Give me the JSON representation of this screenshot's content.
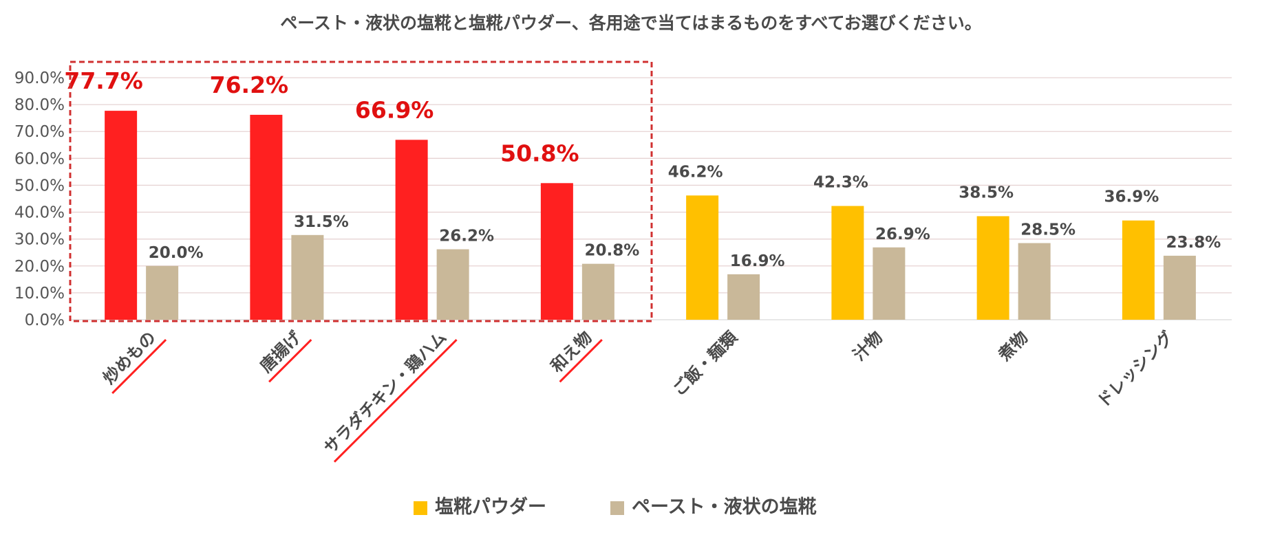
{
  "chart_data": {
    "type": "bar",
    "title": "ペースト・液状の塩糀と塩糀パウダー、各用途で当てはまるものをすべてお選びください。",
    "categories": [
      "炒めもの",
      "唐揚げ",
      "サラダチキン・鶏ハム",
      "和え物",
      "ご飯・麺類",
      "汁物",
      "煮物",
      "ドレッシング"
    ],
    "series": [
      {
        "name": "塩糀パウダー",
        "values": [
          77.7,
          76.2,
          66.9,
          50.8,
          46.2,
          42.3,
          38.5,
          36.9
        ],
        "labels": [
          "77.7%",
          "76.2%",
          "66.9%",
          "50.8%",
          "46.2%",
          "42.3%",
          "38.5%",
          "36.9%"
        ]
      },
      {
        "name": "ペースト・液状の塩糀",
        "values": [
          20.0,
          31.5,
          26.2,
          20.8,
          16.9,
          26.9,
          28.5,
          23.8
        ],
        "labels": [
          "20.0%",
          "31.5%",
          "26.2%",
          "20.8%",
          "16.9%",
          "26.9%",
          "28.5%",
          "23.8%"
        ]
      }
    ],
    "highlighted_categories": 4,
    "yticks": [
      "0.0%",
      "10.0%",
      "20.0%",
      "30.0%",
      "40.0%",
      "50.0%",
      "60.0%",
      "70.0%",
      "80.0%",
      "90.0%"
    ],
    "ylim": [
      0,
      90
    ],
    "grid": true,
    "legend_position": "bottom",
    "colors": {
      "highlight": "#ff2020",
      "highlight_text": "#e01010",
      "powder": "#ffc000",
      "paste": "#c9b899",
      "grid": "#e6d3d3",
      "box": "#d03030",
      "text": "#4a4a4a"
    }
  }
}
